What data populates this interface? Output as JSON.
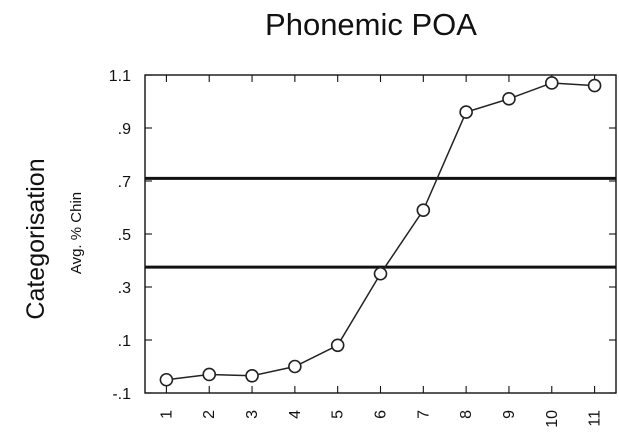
{
  "chart_data": {
    "type": "line",
    "title": "Phonemic POA",
    "ylabel": "Categorisation",
    "ylabel_sub": "Avg. % Chin",
    "xlabel": "",
    "x": [
      1,
      2,
      3,
      4,
      5,
      6,
      7,
      8,
      9,
      10,
      11
    ],
    "values": [
      -0.05,
      -0.03,
      -0.035,
      0.0,
      0.08,
      0.35,
      0.59,
      0.96,
      1.01,
      1.07,
      1.06
    ],
    "ylim": [
      -0.1,
      1.1
    ],
    "xlim": [
      0.5,
      11.5
    ],
    "y_ticks": [
      1.1,
      0.9,
      0.7,
      0.5,
      0.3,
      0.1,
      -0.1
    ],
    "y_tick_labels": [
      "1.1",
      ".9",
      ".7",
      ".5",
      ".3",
      ".1",
      "-.1"
    ],
    "x_tick_labels": [
      "1",
      "2",
      "3",
      "4",
      "5",
      "6",
      "7",
      "8",
      "9",
      "10",
      "11"
    ],
    "reference_lines": [
      0.71,
      0.375
    ],
    "grid": false,
    "legend": "none",
    "colors": {
      "line": "#222222",
      "marker_fill": "#ffffff",
      "reference_line": "#111111",
      "axis": "#111111",
      "text": "#111111"
    }
  }
}
